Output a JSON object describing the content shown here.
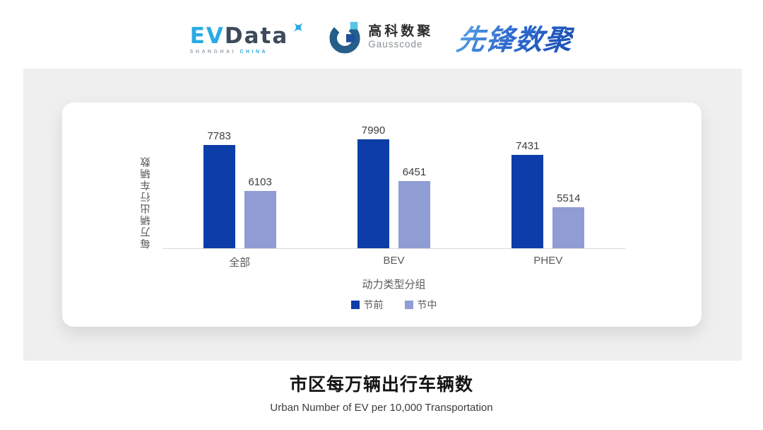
{
  "header": {
    "evdata": {
      "part1": "EV",
      "part2": "Data",
      "sub1": "SHANGHAI",
      "sub2": "CHINA"
    },
    "gausscode": {
      "cn": "高科数聚",
      "en": "Gausscode"
    },
    "pioneer": "先锋数聚"
  },
  "chart_data": {
    "type": "bar",
    "categories": [
      "全部",
      "BEV",
      "PHEV"
    ],
    "series": [
      {
        "name": "节前",
        "color": "#0C3DA8",
        "values": [
          7783,
          7990,
          7431
        ]
      },
      {
        "name": "节中",
        "color": "#909CD4",
        "values": [
          6103,
          6451,
          5514
        ]
      }
    ],
    "xlabel": "动力类型分组",
    "ylabel": "每万辆出行车辆数",
    "ylim": [
      4000,
      8200
    ],
    "grid": false,
    "legend_position": "bottom",
    "value_labels": true
  },
  "footer": {
    "title": "市区每万辆出行车辆数",
    "subtitle": "Urban Number of EV per 10,000 Transportation"
  },
  "colors": {
    "panel_bg": "#efefef",
    "card_bg": "#ffffff",
    "axis_line": "#d9d9d9",
    "accent_cyan": "#29ABE2",
    "dark_slate": "#3C4A59",
    "gauss_arc": "#255E88",
    "gauss_light_square": "#56C5E8",
    "gauss_dark_square": "#1F4E9A",
    "pioneer_blue_start": "#5FA9E9",
    "pioneer_blue_end": "#1A4FB4"
  }
}
